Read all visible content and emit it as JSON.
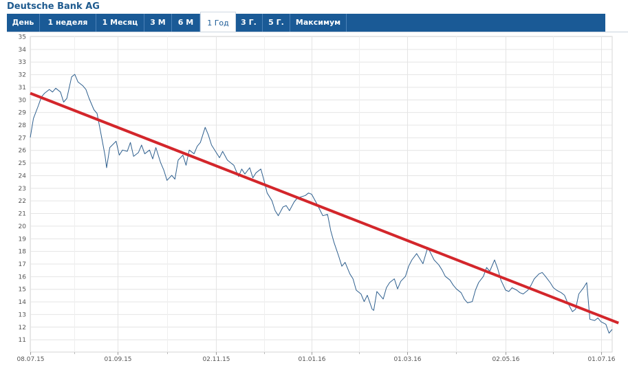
{
  "header": {
    "title": "Deutsche Bank AG"
  },
  "tabs": [
    {
      "label": "День"
    },
    {
      "label": "1 неделя"
    },
    {
      "label": "1 Месяц"
    },
    {
      "label": "3 М"
    },
    {
      "label": "6 М"
    },
    {
      "label": "1 Год",
      "active": true
    },
    {
      "label": "3 Г."
    },
    {
      "label": "5 Г."
    },
    {
      "label": "Максимум"
    }
  ],
  "colors": {
    "tab_bar": "#1a5a96",
    "price_line": "#2e5f8e",
    "trend_line": "#d3262b",
    "grid": "#e4e4e4"
  },
  "chart_data": {
    "type": "line",
    "title": "",
    "xlabel": "",
    "ylabel": "",
    "ylim": [
      10,
      35
    ],
    "y_ticks": [
      11,
      12,
      13,
      14,
      15,
      16,
      17,
      18,
      19,
      20,
      21,
      22,
      23,
      24,
      25,
      26,
      27,
      28,
      29,
      30,
      31,
      32,
      33,
      34,
      35
    ],
    "x_range": [
      "2015-07-08",
      "2016-07-08"
    ],
    "x_ticks": [
      {
        "date": "2015-07-08",
        "label": "08.07.15"
      },
      {
        "date": "2015-09-01",
        "label": "01.09.15"
      },
      {
        "date": "2015-11-02",
        "label": "02.11.15"
      },
      {
        "date": "2016-01-01",
        "label": "01.01.16"
      },
      {
        "date": "2016-03-01",
        "label": "01.03.16"
      },
      {
        "date": "2016-05-02",
        "label": "02.05.16"
      },
      {
        "date": "2016-07-01",
        "label": "01.07.16"
      }
    ],
    "series": [
      {
        "points": [
          [
            "2015-07-08",
            27.0
          ],
          [
            "2015-07-10",
            28.5
          ],
          [
            "2015-07-13",
            29.5
          ],
          [
            "2015-07-15",
            30.2
          ],
          [
            "2015-07-17",
            30.5
          ],
          [
            "2015-07-20",
            30.8
          ],
          [
            "2015-07-22",
            30.6
          ],
          [
            "2015-07-24",
            30.9
          ],
          [
            "2015-07-27",
            30.6
          ],
          [
            "2015-07-29",
            29.8
          ],
          [
            "2015-07-31",
            30.1
          ],
          [
            "2015-08-03",
            31.8
          ],
          [
            "2015-08-05",
            32.0
          ],
          [
            "2015-08-07",
            31.4
          ],
          [
            "2015-08-10",
            31.1
          ],
          [
            "2015-08-12",
            30.8
          ],
          [
            "2015-08-14",
            30.1
          ],
          [
            "2015-08-17",
            29.2
          ],
          [
            "2015-08-19",
            28.9
          ],
          [
            "2015-08-21",
            27.6
          ],
          [
            "2015-08-24",
            25.6
          ],
          [
            "2015-08-25",
            24.6
          ],
          [
            "2015-08-27",
            26.2
          ],
          [
            "2015-08-31",
            26.7
          ],
          [
            "2015-09-02",
            25.6
          ],
          [
            "2015-09-04",
            26.0
          ],
          [
            "2015-09-07",
            25.9
          ],
          [
            "2015-09-09",
            26.6
          ],
          [
            "2015-09-11",
            25.5
          ],
          [
            "2015-09-14",
            25.8
          ],
          [
            "2015-09-16",
            26.4
          ],
          [
            "2015-09-18",
            25.7
          ],
          [
            "2015-09-21",
            26.0
          ],
          [
            "2015-09-23",
            25.3
          ],
          [
            "2015-09-25",
            26.2
          ],
          [
            "2015-09-28",
            25.0
          ],
          [
            "2015-09-30",
            24.4
          ],
          [
            "2015-10-02",
            23.6
          ],
          [
            "2015-10-05",
            24.0
          ],
          [
            "2015-10-07",
            23.7
          ],
          [
            "2015-10-09",
            25.2
          ],
          [
            "2015-10-12",
            25.6
          ],
          [
            "2015-10-14",
            24.8
          ],
          [
            "2015-10-16",
            26.0
          ],
          [
            "2015-10-19",
            25.7
          ],
          [
            "2015-10-21",
            26.3
          ],
          [
            "2015-10-23",
            26.6
          ],
          [
            "2015-10-26",
            27.8
          ],
          [
            "2015-10-28",
            27.2
          ],
          [
            "2015-10-30",
            26.4
          ],
          [
            "2015-11-02",
            25.8
          ],
          [
            "2015-11-04",
            25.4
          ],
          [
            "2015-11-06",
            25.9
          ],
          [
            "2015-11-09",
            25.2
          ],
          [
            "2015-11-11",
            25.0
          ],
          [
            "2015-11-13",
            24.8
          ],
          [
            "2015-11-16",
            23.9
          ],
          [
            "2015-11-18",
            24.5
          ],
          [
            "2015-11-20",
            24.1
          ],
          [
            "2015-11-23",
            24.6
          ],
          [
            "2015-11-25",
            23.8
          ],
          [
            "2015-11-27",
            24.2
          ],
          [
            "2015-11-30",
            24.5
          ],
          [
            "2015-12-02",
            23.6
          ],
          [
            "2015-12-04",
            22.6
          ],
          [
            "2015-12-07",
            22.0
          ],
          [
            "2015-12-09",
            21.2
          ],
          [
            "2015-12-11",
            20.8
          ],
          [
            "2015-12-14",
            21.5
          ],
          [
            "2015-12-16",
            21.6
          ],
          [
            "2015-12-18",
            21.2
          ],
          [
            "2015-12-21",
            21.9
          ],
          [
            "2015-12-23",
            22.2
          ],
          [
            "2015-12-28",
            22.4
          ],
          [
            "2015-12-30",
            22.6
          ],
          [
            "2016-01-01",
            22.5
          ],
          [
            "2016-01-04",
            21.8
          ],
          [
            "2016-01-06",
            21.3
          ],
          [
            "2016-01-08",
            20.8
          ],
          [
            "2016-01-11",
            20.9
          ],
          [
            "2016-01-13",
            19.6
          ],
          [
            "2016-01-15",
            18.7
          ],
          [
            "2016-01-18",
            17.6
          ],
          [
            "2016-01-20",
            16.8
          ],
          [
            "2016-01-22",
            17.1
          ],
          [
            "2016-01-25",
            16.2
          ],
          [
            "2016-01-27",
            15.8
          ],
          [
            "2016-01-29",
            14.9
          ],
          [
            "2016-02-01",
            14.6
          ],
          [
            "2016-02-03",
            14.0
          ],
          [
            "2016-02-05",
            14.5
          ],
          [
            "2016-02-08",
            13.4
          ],
          [
            "2016-02-09",
            13.3
          ],
          [
            "2016-02-11",
            14.8
          ],
          [
            "2016-02-15",
            14.2
          ],
          [
            "2016-02-17",
            15.1
          ],
          [
            "2016-02-19",
            15.5
          ],
          [
            "2016-02-22",
            15.8
          ],
          [
            "2016-02-24",
            15.0
          ],
          [
            "2016-02-26",
            15.6
          ],
          [
            "2016-02-29",
            16.0
          ],
          [
            "2016-03-02",
            16.8
          ],
          [
            "2016-03-04",
            17.3
          ],
          [
            "2016-03-07",
            17.8
          ],
          [
            "2016-03-09",
            17.4
          ],
          [
            "2016-03-11",
            17.0
          ],
          [
            "2016-03-14",
            18.3
          ],
          [
            "2016-03-16",
            17.8
          ],
          [
            "2016-03-18",
            17.3
          ],
          [
            "2016-03-21",
            16.9
          ],
          [
            "2016-03-23",
            16.5
          ],
          [
            "2016-03-25",
            16.0
          ],
          [
            "2016-03-28",
            15.7
          ],
          [
            "2016-03-30",
            15.3
          ],
          [
            "2016-04-01",
            15.0
          ],
          [
            "2016-04-04",
            14.7
          ],
          [
            "2016-04-06",
            14.2
          ],
          [
            "2016-04-08",
            13.9
          ],
          [
            "2016-04-11",
            14.0
          ],
          [
            "2016-04-13",
            14.9
          ],
          [
            "2016-04-15",
            15.5
          ],
          [
            "2016-04-18",
            16.0
          ],
          [
            "2016-04-20",
            16.7
          ],
          [
            "2016-04-22",
            16.4
          ],
          [
            "2016-04-25",
            17.3
          ],
          [
            "2016-04-27",
            16.6
          ],
          [
            "2016-04-29",
            15.7
          ],
          [
            "2016-05-02",
            14.9
          ],
          [
            "2016-05-04",
            14.8
          ],
          [
            "2016-05-06",
            15.1
          ],
          [
            "2016-05-09",
            14.9
          ],
          [
            "2016-05-11",
            14.7
          ],
          [
            "2016-05-13",
            14.6
          ],
          [
            "2016-05-16",
            14.9
          ],
          [
            "2016-05-18",
            15.3
          ],
          [
            "2016-05-20",
            15.8
          ],
          [
            "2016-05-23",
            16.2
          ],
          [
            "2016-05-25",
            16.3
          ],
          [
            "2016-05-27",
            16.0
          ],
          [
            "2016-05-30",
            15.5
          ],
          [
            "2016-06-01",
            15.1
          ],
          [
            "2016-06-03",
            14.9
          ],
          [
            "2016-06-06",
            14.7
          ],
          [
            "2016-06-08",
            14.5
          ],
          [
            "2016-06-10",
            13.9
          ],
          [
            "2016-06-13",
            13.2
          ],
          [
            "2016-06-15",
            13.4
          ],
          [
            "2016-06-17",
            14.6
          ],
          [
            "2016-06-20",
            15.1
          ],
          [
            "2016-06-22",
            15.5
          ],
          [
            "2016-06-24",
            12.6
          ],
          [
            "2016-06-27",
            12.5
          ],
          [
            "2016-06-29",
            12.7
          ],
          [
            "2016-07-01",
            12.4
          ],
          [
            "2016-07-04",
            12.2
          ],
          [
            "2016-07-06",
            11.5
          ],
          [
            "2016-07-08",
            11.8
          ]
        ]
      },
      {
        "type": "trendline",
        "points": [
          [
            "2015-07-08",
            30.5
          ],
          [
            "2016-07-12",
            12.3
          ]
        ]
      }
    ]
  }
}
